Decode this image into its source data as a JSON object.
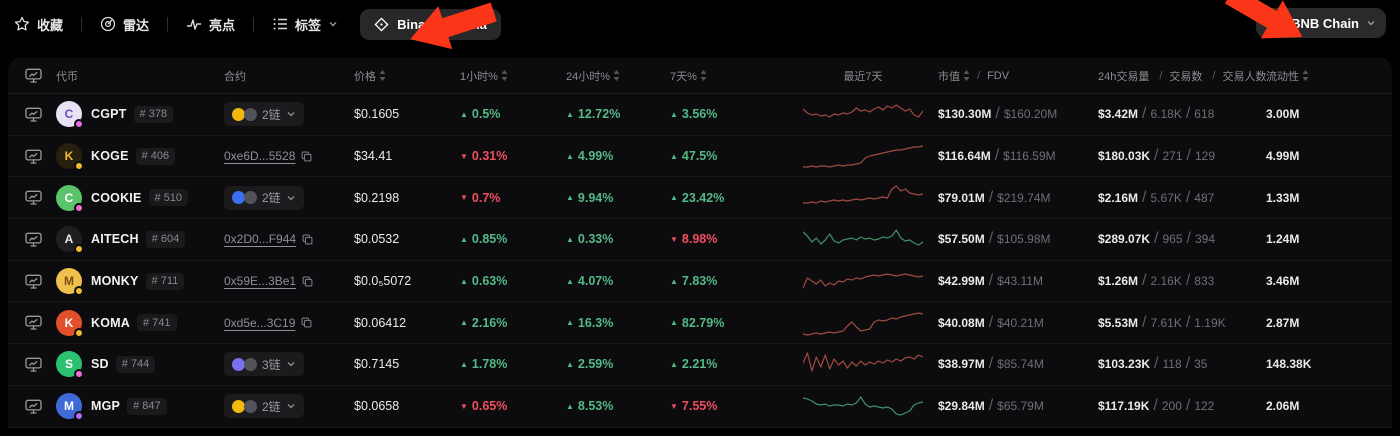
{
  "colors": {
    "up": "#53b987",
    "down": "#ef4f5f",
    "spark_red": "#a04a42",
    "spark_green": "#3f9069",
    "arrow": "#fb3517",
    "bnb_yellow": "#f0b90b"
  },
  "topbar": {
    "favorites": "收藏",
    "radar": "雷达",
    "highlights": "亮点",
    "tags": "标签",
    "binance_alpha": "Binance Alpha",
    "chain_selector": "BNB Chain"
  },
  "table": {
    "sep": "/",
    "headers": {
      "token": "代币",
      "contract": "合约",
      "price": "价格",
      "h1": "1小时%",
      "h24": "24小时%",
      "d7": "7天%",
      "last7d": "最近7天",
      "mcap": "市值",
      "fdv": "FDV",
      "vol24h": "24h交易量",
      "txns": "交易数",
      "traders": "交易人数",
      "liquidity": "流动性"
    },
    "rows": [
      {
        "name": "CGPT",
        "rank": "# 378",
        "logo": {
          "bg": "#e8e2f4",
          "fg": "#6d4cc3",
          "letter": "C",
          "badge": "#e26ee8"
        },
        "contract": {
          "type": "chains",
          "label": "2链",
          "color": "#f0b90b"
        },
        "price": "$0.1605",
        "change_1h": {
          "dir": "up",
          "value": "0.5%"
        },
        "change_24h": {
          "dir": "up",
          "value": "12.72%"
        },
        "change_7d": {
          "dir": "up",
          "value": "3.56%"
        },
        "spark": {
          "trend": "red",
          "points": [
            10,
            14,
            16,
            15,
            17,
            16,
            18,
            15,
            16,
            14,
            15,
            13,
            9,
            12,
            11,
            13,
            10,
            8,
            11,
            7,
            9,
            6,
            9,
            12,
            10,
            16,
            18,
            12
          ]
        },
        "mcap": "$130.30M",
        "fdv": "$160.20M",
        "volume": "$3.42M",
        "txns": "6.18K",
        "traders": "618",
        "liquidity": "3.00M"
      },
      {
        "name": "KOGE",
        "rank": "# 406",
        "logo": {
          "bg": "#26200e",
          "fg": "#f3ba2f",
          "letter": "K",
          "badge": "#f3ba2f"
        },
        "contract": {
          "type": "address",
          "text": "0xe6D...5528"
        },
        "price": "$34.41",
        "change_1h": {
          "dir": "down",
          "value": "0.31%"
        },
        "change_24h": {
          "dir": "up",
          "value": "4.99%"
        },
        "change_7d": {
          "dir": "up",
          "value": "47.5%"
        },
        "spark": {
          "trend": "red",
          "points": [
            26,
            26,
            25,
            26,
            25,
            25,
            26,
            25,
            24,
            25,
            24,
            24,
            23,
            22,
            17,
            15,
            14,
            13,
            12,
            11,
            10,
            9,
            9,
            8,
            7,
            6,
            6,
            5
          ]
        },
        "mcap": "$116.64M",
        "fdv": "$116.59M",
        "volume": "$180.03K",
        "txns": "271",
        "traders": "129",
        "liquidity": "4.99M"
      },
      {
        "name": "COOKIE",
        "rank": "# 510",
        "logo": {
          "bg": "#5bc46a",
          "fg": "#ffffff",
          "letter": "C",
          "badge": "#ef6ed2"
        },
        "contract": {
          "type": "chains",
          "label": "2链",
          "color": "#3b6ef0"
        },
        "price": "$0.2198",
        "change_1h": {
          "dir": "down",
          "value": "0.7%"
        },
        "change_24h": {
          "dir": "up",
          "value": "9.94%"
        },
        "change_7d": {
          "dir": "up",
          "value": "23.42%"
        },
        "spark": {
          "trend": "red",
          "points": [
            20,
            20,
            19,
            20,
            18,
            19,
            18,
            17,
            18,
            17,
            18,
            17,
            16,
            17,
            16,
            15,
            16,
            15,
            14,
            15,
            6,
            3,
            8,
            6,
            10,
            11,
            12,
            11
          ]
        },
        "mcap": "$79.01M",
        "fdv": "$219.74M",
        "volume": "$2.16M",
        "txns": "5.67K",
        "traders": "487",
        "liquidity": "1.33M"
      },
      {
        "name": "AITECH",
        "rank": "# 604",
        "logo": {
          "bg": "#1f1f22",
          "fg": "#e8e8e8",
          "letter": "A",
          "badge": "#f3ba2f"
        },
        "contract": {
          "type": "address",
          "text": "0x2D0...F944"
        },
        "price": "$0.0532",
        "change_1h": {
          "dir": "up",
          "value": "0.85%"
        },
        "change_24h": {
          "dir": "up",
          "value": "0.33%"
        },
        "change_7d": {
          "dir": "down",
          "value": "8.98%"
        },
        "spark": {
          "trend": "green",
          "points": [
            8,
            12,
            18,
            14,
            20,
            16,
            10,
            17,
            19,
            16,
            15,
            14,
            16,
            13,
            15,
            14,
            16,
            15,
            13,
            14,
            12,
            6,
            14,
            17,
            16,
            19,
            21,
            18
          ]
        },
        "mcap": "$57.50M",
        "fdv": "$105.98M",
        "volume": "$289.07K",
        "txns": "965",
        "traders": "394",
        "liquidity": "1.24M"
      },
      {
        "name": "MONKY",
        "rank": "# 711",
        "logo": {
          "bg": "#eec04d",
          "fg": "#7a4d12",
          "letter": "M",
          "badge": "#f3ba2f"
        },
        "contract": {
          "type": "address",
          "text": "0x59E...3Be1"
        },
        "price": "$0.0₅5072",
        "change_1h": {
          "dir": "up",
          "value": "0.63%"
        },
        "change_24h": {
          "dir": "up",
          "value": "4.07%"
        },
        "change_7d": {
          "dir": "up",
          "value": "7.83%"
        },
        "spark": {
          "trend": "red",
          "points": [
            22,
            12,
            15,
            18,
            14,
            20,
            17,
            19,
            15,
            16,
            13,
            14,
            12,
            13,
            11,
            10,
            9,
            10,
            9,
            8,
            9,
            10,
            9,
            8,
            9,
            10,
            11,
            10
          ]
        },
        "mcap": "$42.99M",
        "fdv": "$43.11M",
        "volume": "$1.26M",
        "txns": "2.16K",
        "traders": "833",
        "liquidity": "3.46M"
      },
      {
        "name": "KOMA",
        "rank": "# 741",
        "logo": {
          "bg": "#e14f2b",
          "fg": "#ffffff",
          "letter": "K",
          "badge": "#f3ba2f"
        },
        "contract": {
          "type": "address",
          "text": "0xd5e...3C19"
        },
        "price": "$0.06412",
        "change_1h": {
          "dir": "up",
          "value": "2.16%"
        },
        "change_24h": {
          "dir": "up",
          "value": "16.3%"
        },
        "change_7d": {
          "dir": "up",
          "value": "82.79%"
        },
        "spark": {
          "trend": "red",
          "points": [
            26,
            27,
            26,
            25,
            26,
            25,
            24,
            25,
            24,
            23,
            18,
            14,
            19,
            23,
            22,
            21,
            14,
            12,
            13,
            12,
            10,
            11,
            9,
            8,
            7,
            6,
            5,
            6
          ]
        },
        "mcap": "$40.08M",
        "fdv": "$40.21M",
        "volume": "$5.53M",
        "txns": "7.61K",
        "traders": "1.19K",
        "liquidity": "2.87M"
      },
      {
        "name": "SD",
        "rank": "# 744",
        "logo": {
          "bg": "#2bc170",
          "fg": "#ffffff",
          "letter": "S",
          "badge": "#ef6ed2"
        },
        "contract": {
          "type": "chains",
          "label": "3链",
          "color": "#7a6ff0"
        },
        "price": "$0.7145",
        "change_1h": {
          "dir": "up",
          "value": "1.78%"
        },
        "change_24h": {
          "dir": "up",
          "value": "2.59%"
        },
        "change_7d": {
          "dir": "up",
          "value": "2.21%"
        },
        "spark": {
          "trend": "red",
          "points": [
            14,
            4,
            22,
            8,
            18,
            6,
            20,
            10,
            16,
            12,
            19,
            13,
            17,
            12,
            16,
            13,
            15,
            12,
            14,
            11,
            13,
            10,
            12,
            9,
            8,
            10,
            6,
            8
          ]
        },
        "mcap": "$38.97M",
        "fdv": "$85.74M",
        "volume": "$103.23K",
        "txns": "118",
        "traders": "35",
        "liquidity": "148.38K"
      },
      {
        "name": "MGP",
        "rank": "# 847",
        "logo": {
          "bg": "#3f6ad8",
          "fg": "#ffffff",
          "letter": "M",
          "badge": "#b66ef0"
        },
        "contract": {
          "type": "chains",
          "label": "2链",
          "color": "#f0b90b"
        },
        "price": "$0.0658",
        "change_1h": {
          "dir": "down",
          "value": "0.65%"
        },
        "change_24h": {
          "dir": "up",
          "value": "8.53%"
        },
        "change_7d": {
          "dir": "down",
          "value": "7.55%"
        },
        "spark": {
          "trend": "green",
          "points": [
            7,
            8,
            10,
            13,
            14,
            13,
            15,
            14,
            14,
            15,
            13,
            14,
            12,
            6,
            13,
            16,
            15,
            16,
            17,
            16,
            18,
            23,
            24,
            22,
            20,
            14,
            12,
            11
          ]
        },
        "mcap": "$29.84M",
        "fdv": "$65.79M",
        "volume": "$117.19K",
        "txns": "200",
        "traders": "122",
        "liquidity": "2.06M"
      }
    ]
  }
}
